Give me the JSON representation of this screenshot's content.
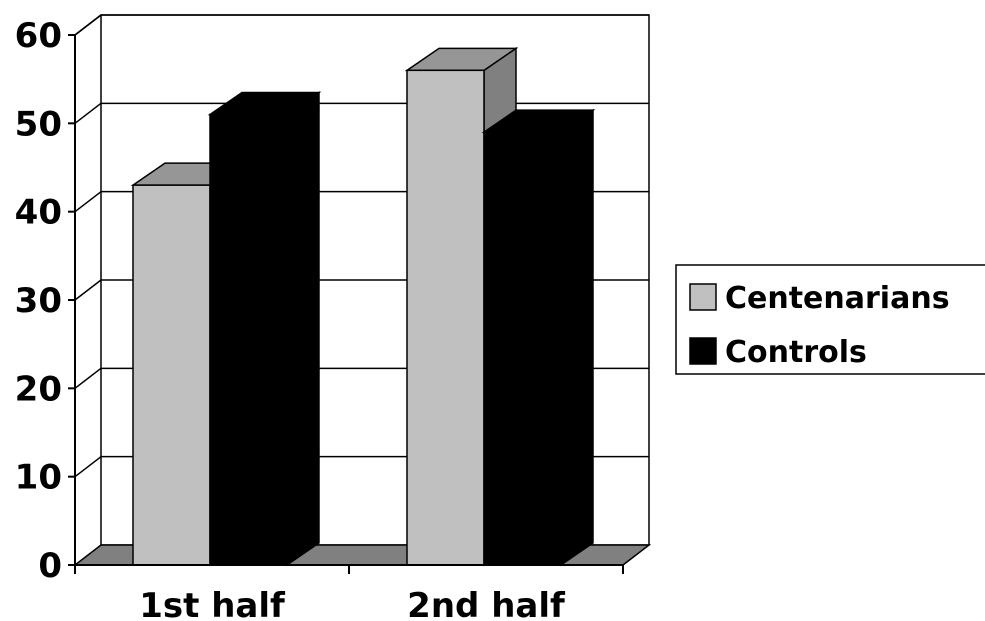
{
  "chart_data": {
    "type": "bar",
    "style": "3d-clustered",
    "categories": [
      "1st half",
      "2nd half"
    ],
    "series": [
      {
        "name": "Centenarians",
        "values": [
          43,
          56
        ],
        "color": "#c0c0c0",
        "side_color": "#808080",
        "top_color": "#969696"
      },
      {
        "name": "Controls",
        "values": [
          51,
          49
        ],
        "color": "#000000",
        "side_color": "#000000",
        "top_color": "#000000"
      }
    ],
    "ylim": [
      0,
      60
    ],
    "yticks": [
      "0",
      "10",
      "20",
      "30",
      "40",
      "50",
      "60"
    ],
    "grid": true,
    "legend": "right",
    "floor_color": "#808080",
    "grid_color": "#000000"
  }
}
